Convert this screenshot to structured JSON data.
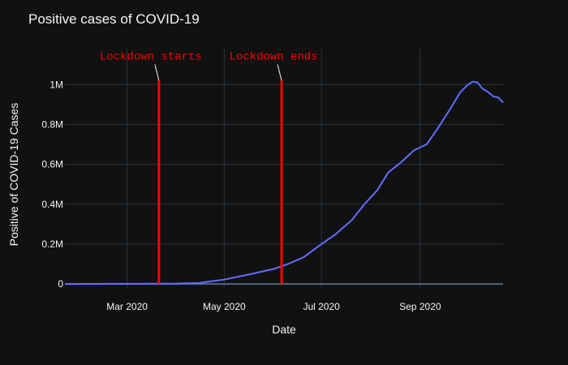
{
  "chart_data": {
    "type": "line",
    "title": "Positive cases of COVID-19",
    "xlabel": "Date",
    "ylabel": "Positive of COVID-19 Cases",
    "xlim": [
      "2020-01-22",
      "2020-10-23"
    ],
    "ylim": [
      -20000,
      1180000
    ],
    "x_ticks": [
      {
        "date": "2020-03-01",
        "label": "Mar 2020"
      },
      {
        "date": "2020-05-01",
        "label": "May 2020"
      },
      {
        "date": "2020-07-01",
        "label": "Jul 2020"
      },
      {
        "date": "2020-09-01",
        "label": "Sep 2020"
      }
    ],
    "y_ticks": [
      {
        "value": 0,
        "label": "0"
      },
      {
        "value": 200000,
        "label": "0.2M"
      },
      {
        "value": 400000,
        "label": "0.4M"
      },
      {
        "value": 600000,
        "label": "0.6M"
      },
      {
        "value": 800000,
        "label": "0.8M"
      },
      {
        "value": 1000000,
        "label": "1M"
      }
    ],
    "grid": true,
    "series": [
      {
        "color": "#636efa",
        "points": [
          [
            "2020-01-22",
            0
          ],
          [
            "2020-02-10",
            500
          ],
          [
            "2020-03-01",
            1000
          ],
          [
            "2020-03-15",
            1500
          ],
          [
            "2020-04-01",
            2000
          ],
          [
            "2020-04-15",
            5000
          ],
          [
            "2020-05-01",
            22000
          ],
          [
            "2020-05-15",
            45000
          ],
          [
            "2020-06-01",
            75000
          ],
          [
            "2020-06-10",
            100000
          ],
          [
            "2020-06-20",
            135000
          ],
          [
            "2020-07-01",
            200000
          ],
          [
            "2020-07-10",
            250000
          ],
          [
            "2020-07-20",
            320000
          ],
          [
            "2020-07-28",
            400000
          ],
          [
            "2020-08-05",
            470000
          ],
          [
            "2020-08-12",
            560000
          ],
          [
            "2020-08-20",
            610000
          ],
          [
            "2020-08-28",
            670000
          ],
          [
            "2020-09-05",
            700000
          ],
          [
            "2020-09-12",
            780000
          ],
          [
            "2020-09-20",
            880000
          ],
          [
            "2020-09-26",
            960000
          ],
          [
            "2020-10-01",
            1000000
          ],
          [
            "2020-10-04",
            1015000
          ],
          [
            "2020-10-07",
            1010000
          ],
          [
            "2020-10-10",
            980000
          ],
          [
            "2020-10-14",
            960000
          ],
          [
            "2020-10-17",
            940000
          ],
          [
            "2020-10-20",
            935000
          ],
          [
            "2020-10-23",
            910000
          ]
        ]
      }
    ],
    "annotations": [
      {
        "label": "Lockdown starts",
        "date": "2020-03-21",
        "ymax": 1020000,
        "color": "#ff0000"
      },
      {
        "label": "Lockdown ends",
        "date": "2020-06-06",
        "ymax": 1020000,
        "color": "#ff0000"
      }
    ]
  }
}
